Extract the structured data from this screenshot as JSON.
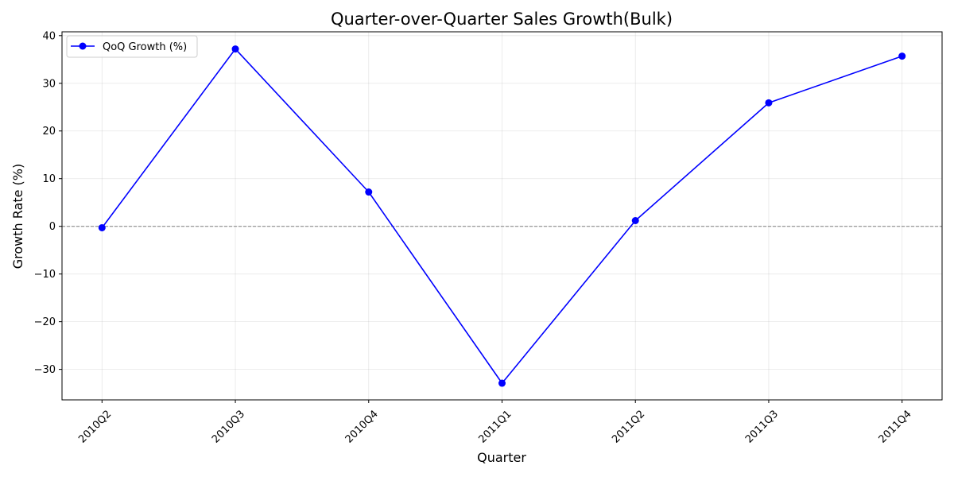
{
  "chart_data": {
    "type": "line",
    "title": "Quarter-over-Quarter Sales Growth(Bulk)",
    "xlabel": "Quarter",
    "ylabel": "Growth Rate (%)",
    "categories": [
      "2010Q2",
      "2010Q3",
      "2010Q4",
      "2011Q1",
      "2011Q2",
      "2011Q3",
      "2011Q4"
    ],
    "series": [
      {
        "name": "QoQ Growth (%)",
        "values": [
          -0.3,
          37.2,
          7.2,
          -32.9,
          1.2,
          25.9,
          35.7
        ],
        "color": "#0000ff"
      }
    ],
    "ylim": [
      -36.4,
      40.8
    ],
    "yticks": [
      -30,
      -20,
      -10,
      0,
      10,
      20,
      30,
      40
    ],
    "ytick_labels": [
      "−30",
      "−20",
      "−10",
      "0",
      "10",
      "20",
      "30",
      "40"
    ],
    "reference_line": {
      "y": 0,
      "style": "dashed",
      "color": "#808080"
    },
    "grid": true,
    "legend_position": "top-left",
    "xtick_rotation": 45
  }
}
